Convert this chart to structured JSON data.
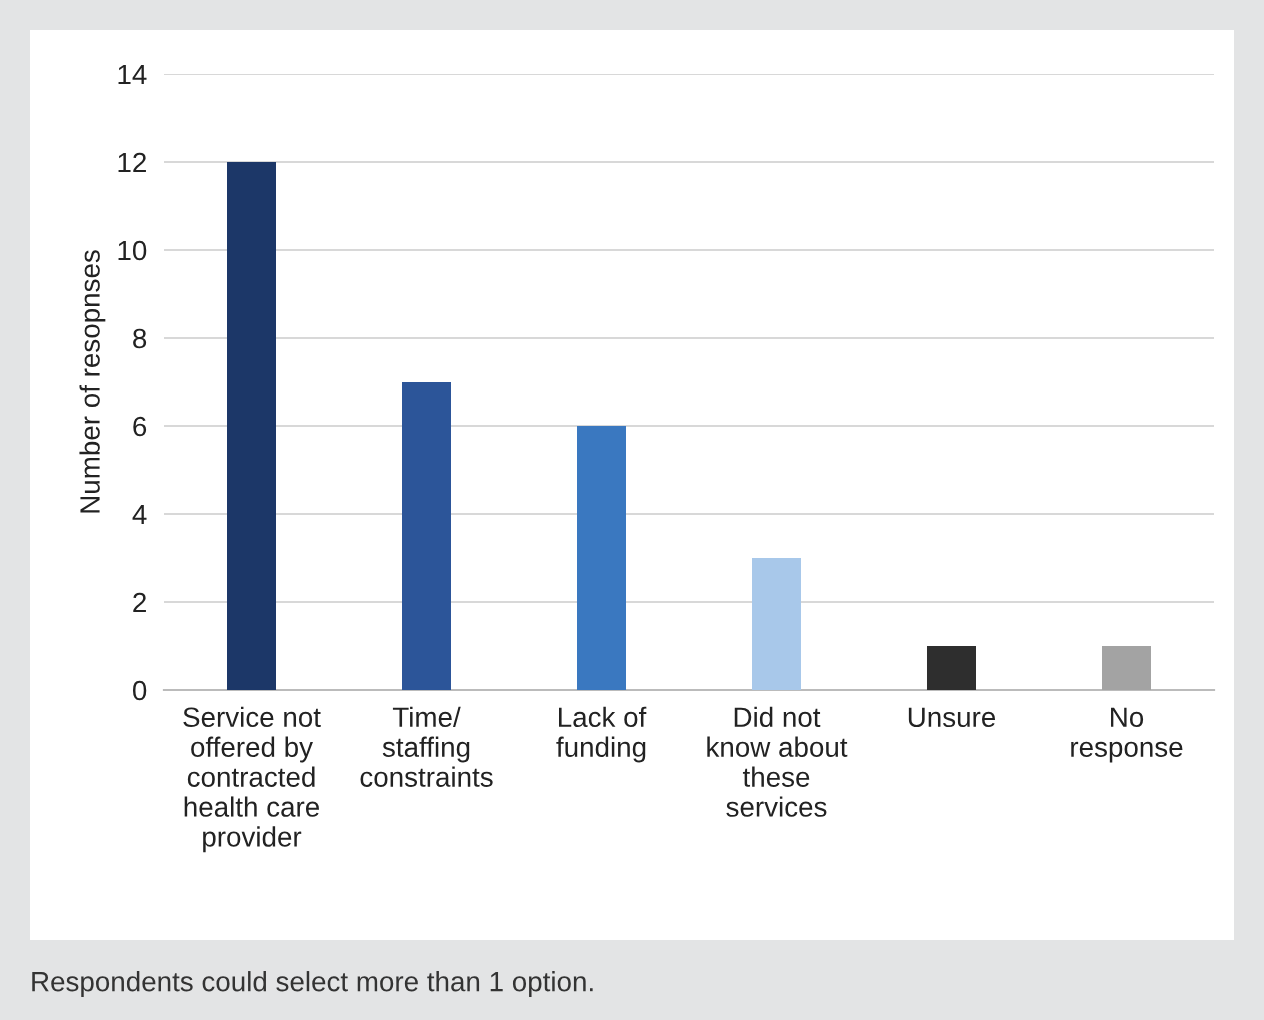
{
  "chart_data": {
    "type": "bar",
    "ylabel": "Number of resopnses",
    "categories": [
      "Service not\noffered by\ncontracted\nhealth care\nprovider",
      "Time/\nstaffing\nconstraints",
      "Lack of\nfunding",
      "Did not\nknow about\nthese\nservices",
      "Unsure",
      "No\nresponse"
    ],
    "values": [
      12,
      7,
      6,
      3,
      1,
      1
    ],
    "colors": [
      "#1c3768",
      "#2c5599",
      "#3a78c0",
      "#a8c8ea",
      "#2e2e2e",
      "#a3a3a3"
    ],
    "ylim": [
      0,
      14
    ],
    "yticks": [
      0,
      2,
      4,
      6,
      8,
      10,
      12,
      14
    ],
    "grid": "y",
    "annotations": [
      "Respondents could select more than 1 option."
    ]
  }
}
